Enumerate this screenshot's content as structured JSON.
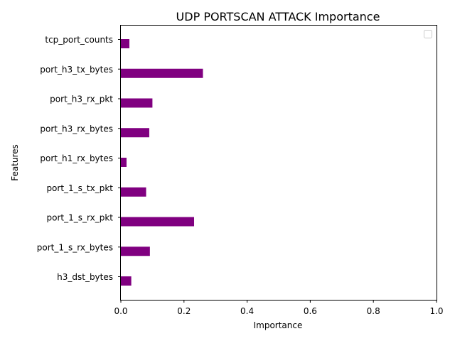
{
  "chart_data": {
    "type": "bar",
    "orientation": "horizontal",
    "title": "UDP PORTSCAN ATTACK Importance",
    "xlabel": "Importance",
    "ylabel": "Features",
    "xlim": [
      0,
      1.0
    ],
    "xticks": [
      "0.0",
      "0.2",
      "0.4",
      "0.6",
      "0.8",
      "1.0"
    ],
    "categories": [
      "tcp_port_counts",
      "port_h3_tx_bytes",
      "port_h3_rx_pkt",
      "port_h3_rx_bytes",
      "port_h1_rx_bytes",
      "port_1_s_tx_pkt",
      "port_1_s_rx_pkt",
      "port_1_s_rx_bytes",
      "h3_dst_bytes"
    ],
    "values": [
      0.027,
      0.26,
      0.1,
      0.09,
      0.018,
      0.08,
      0.232,
      0.092,
      0.033
    ],
    "bar_color": "#800080",
    "grid": false,
    "legend": "top-right, empty"
  }
}
